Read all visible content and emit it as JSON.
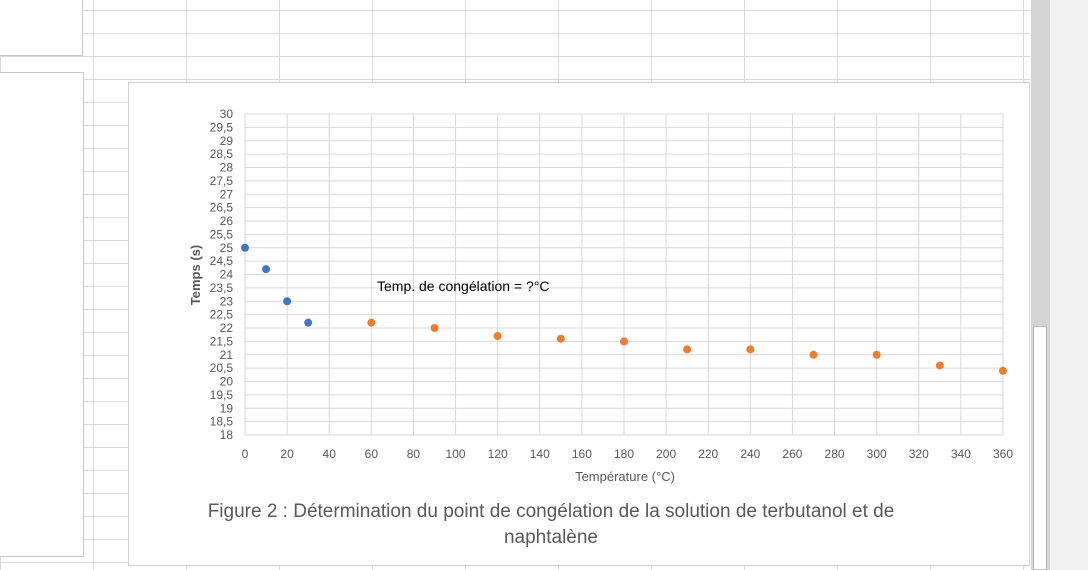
{
  "caption": {
    "line1": "Figure 2 : Détermination du point de congélation de la solution de terbutanol et de",
    "line2": "naphtalène"
  },
  "colors": {
    "series_blue": "#4472c4",
    "series_orange": "#ed7d31",
    "gridline": "#d9d9d9",
    "axis_text": "#595959"
  },
  "chart_data": {
    "type": "scatter",
    "title": "",
    "xlabel": "Température (°C)",
    "ylabel": "Temps (s)",
    "xlim": [
      0,
      360
    ],
    "ylim": [
      18,
      30
    ],
    "x_ticks": [
      "0",
      "20",
      "40",
      "60",
      "80",
      "100",
      "120",
      "140",
      "160",
      "180",
      "200",
      "220",
      "240",
      "260",
      "280",
      "300",
      "320",
      "340",
      "360"
    ],
    "y_ticks": [
      "18",
      "18,5",
      "19",
      "19,5",
      "20",
      "20,5",
      "21",
      "21,5",
      "22",
      "22,5",
      "23",
      "23,5",
      "24",
      "24,5",
      "25",
      "25,5",
      "26",
      "26,5",
      "27",
      "27,5",
      "28",
      "28,5",
      "29",
      "29,5",
      "30"
    ],
    "grid": true,
    "legend": "none",
    "annotation": "Temp. de congélation = ?°C",
    "series": [
      {
        "color": "#4472c4",
        "points": [
          [
            0,
            25.0
          ],
          [
            10,
            24.2
          ],
          [
            20,
            23.0
          ],
          [
            30,
            22.2
          ]
        ]
      },
      {
        "color": "#ed7d31",
        "points": [
          [
            60,
            22.2
          ],
          [
            90,
            22.0
          ],
          [
            120,
            21.7
          ],
          [
            150,
            21.6
          ],
          [
            180,
            21.5
          ],
          [
            210,
            21.2
          ],
          [
            240,
            21.2
          ],
          [
            270,
            21.0
          ],
          [
            300,
            21.0
          ],
          [
            330,
            20.6
          ],
          [
            360,
            20.4
          ]
        ]
      }
    ]
  }
}
